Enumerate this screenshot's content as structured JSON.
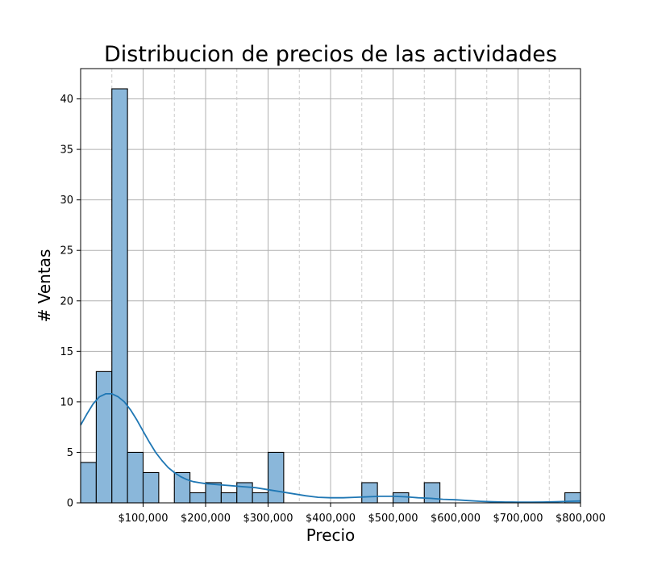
{
  "chart_data": {
    "type": "bar",
    "title": "Distribucion de precios de las actividades",
    "xlabel": "Precio",
    "ylabel": "# Ventas",
    "xlim": [
      0,
      800000
    ],
    "ylim": [
      0,
      43
    ],
    "x_ticks": [
      100000,
      200000,
      300000,
      400000,
      500000,
      600000,
      700000,
      800000
    ],
    "x_tick_labels": [
      "$100,000",
      "$200,000",
      "$300,000",
      "$400,000",
      "$500,000",
      "$600,000",
      "$700,000",
      "$800,000"
    ],
    "x_minor_gridlines": [
      50000,
      150000,
      250000,
      350000,
      450000,
      550000,
      650000,
      750000
    ],
    "y_ticks": [
      0,
      5,
      10,
      15,
      20,
      25,
      30,
      35,
      40
    ],
    "y_tick_labels": [
      "0",
      "5",
      "10",
      "15",
      "20",
      "25",
      "30",
      "35",
      "40"
    ],
    "grid": true,
    "bin_width": 25000,
    "bins": [
      {
        "start": 0,
        "end": 25000,
        "count": 4
      },
      {
        "start": 25000,
        "end": 50000,
        "count": 13
      },
      {
        "start": 50000,
        "end": 75000,
        "count": 41
      },
      {
        "start": 75000,
        "end": 100000,
        "count": 5
      },
      {
        "start": 100000,
        "end": 125000,
        "count": 3
      },
      {
        "start": 150000,
        "end": 175000,
        "count": 3
      },
      {
        "start": 175000,
        "end": 200000,
        "count": 1
      },
      {
        "start": 200000,
        "end": 225000,
        "count": 2
      },
      {
        "start": 225000,
        "end": 250000,
        "count": 1
      },
      {
        "start": 250000,
        "end": 275000,
        "count": 2
      },
      {
        "start": 275000,
        "end": 300000,
        "count": 1
      },
      {
        "start": 300000,
        "end": 325000,
        "count": 5
      },
      {
        "start": 450000,
        "end": 475000,
        "count": 2
      },
      {
        "start": 500000,
        "end": 525000,
        "count": 1
      },
      {
        "start": 550000,
        "end": 575000,
        "count": 2
      },
      {
        "start": 775000,
        "end": 800000,
        "count": 1
      }
    ],
    "kde": {
      "x": [
        0,
        10000,
        20000,
        30000,
        40000,
        50000,
        60000,
        70000,
        80000,
        90000,
        100000,
        110000,
        120000,
        130000,
        140000,
        150000,
        160000,
        170000,
        180000,
        190000,
        200000,
        220000,
        240000,
        260000,
        280000,
        300000,
        320000,
        340000,
        360000,
        380000,
        400000,
        420000,
        440000,
        460000,
        480000,
        500000,
        520000,
        540000,
        560000,
        580000,
        600000,
        620000,
        640000,
        660000,
        680000,
        700000,
        720000,
        740000,
        760000,
        780000,
        800000
      ],
      "y": [
        7.7,
        8.8,
        9.8,
        10.5,
        10.8,
        10.8,
        10.5,
        10.0,
        9.2,
        8.2,
        7.1,
        6.0,
        5.0,
        4.2,
        3.5,
        3.0,
        2.6,
        2.3,
        2.1,
        2.0,
        1.9,
        1.8,
        1.7,
        1.6,
        1.5,
        1.3,
        1.1,
        0.9,
        0.7,
        0.55,
        0.5,
        0.5,
        0.55,
        0.6,
        0.65,
        0.65,
        0.6,
        0.5,
        0.45,
        0.35,
        0.3,
        0.22,
        0.15,
        0.1,
        0.08,
        0.07,
        0.07,
        0.08,
        0.1,
        0.15,
        0.18
      ]
    },
    "colors": {
      "bar_fill": "#8ab7da",
      "bar_edge": "#000000",
      "kde_line": "#1f77b4",
      "grid": "#b0b0b0",
      "axes": "#000000"
    }
  }
}
